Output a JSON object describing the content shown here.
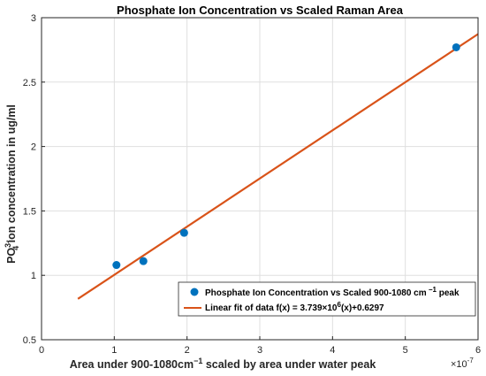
{
  "chart_data": {
    "type": "scatter",
    "title": "Phosphate Ion Concentration vs Scaled Raman Area",
    "xlabel_parts": {
      "a": "Area under 900-1080cm",
      "sup": "−1",
      "b": " scaled by area under water peak"
    },
    "ylabel_parts": {
      "a": "PO",
      "sup": "3-",
      "sub": "4",
      "b": " ion concentration in ug/ml"
    },
    "x_exponent": {
      "base": "×10",
      "exp": "-7"
    },
    "xlim": [
      0,
      6
    ],
    "ylim": [
      0.5,
      3
    ],
    "xticks": [
      "0",
      "1",
      "2",
      "3",
      "4",
      "5",
      "6"
    ],
    "yticks": [
      "0.5",
      "1",
      "1.5",
      "2",
      "2.5",
      "3"
    ],
    "grid": true,
    "legend_position": "bottom-right",
    "series": [
      {
        "name": "Phosphate Ion Concentration vs Scaled 900-1080 cm −1 peak",
        "kind": "scatter",
        "color": "#0072BD",
        "x": [
          1.03,
          1.4,
          1.96,
          5.7
        ],
        "y": [
          1.08,
          1.11,
          1.33,
          2.77
        ]
      },
      {
        "name": "Linear fit of data f(x) = 3.739×10^6(x)+0.6297",
        "kind": "line",
        "color": "#D95319",
        "x": [
          0.5,
          6.0
        ],
        "y": [
          0.817,
          2.873
        ]
      }
    ],
    "legend_entries": [
      {
        "a": "Phosphate Ion Concentration vs Scaled 900-1080 cm",
        "sup": " −1",
        "b": " peak"
      },
      {
        "a": "Linear fit of data f(x) = 3.739×10",
        "sup": "6",
        "b": "(x)+0.6297"
      }
    ]
  }
}
